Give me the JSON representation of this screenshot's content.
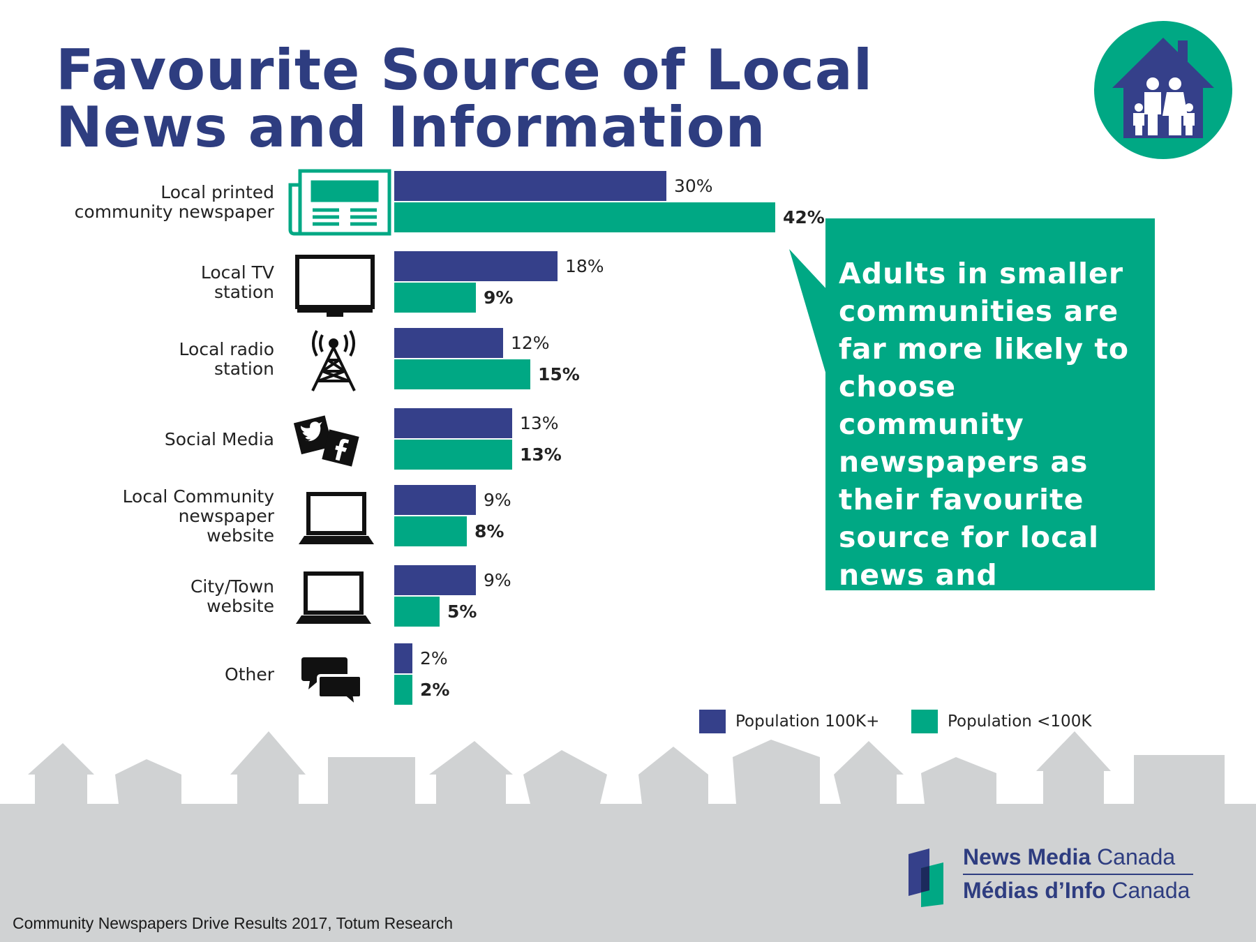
{
  "title": "Favourite Source of Local News and Information",
  "callout_text": "Adults in smaller communities  are far more likely to choose community newspapers as their favourite source for local news and information.",
  "legend": [
    {
      "label": "Population 100K+",
      "color": "#35408a"
    },
    {
      "label": "Population <100K",
      "color": "#00a884"
    }
  ],
  "source": "Community Newspapers Drive Results 2017, Totum Research",
  "logo": {
    "en_bold": "News Media",
    "en_rest": "Canada",
    "fr_bold": "Médias d’Info",
    "fr_rest": "Canada"
  },
  "colors": {
    "title": "#2e3d80",
    "series_large": "#35408a",
    "series_small": "#00a884",
    "skyline": "#d0d2d3"
  },
  "chart_data": {
    "type": "bar",
    "orientation": "horizontal",
    "categories": [
      {
        "label": [
          "Local printed",
          "community  newspaper"
        ],
        "icon": "newspaper-icon"
      },
      {
        "label": [
          "Local TV",
          "station"
        ],
        "icon": "tv-icon"
      },
      {
        "label": [
          "Local radio",
          "station"
        ],
        "icon": "radio-tower-icon"
      },
      {
        "label": [
          "Social Media"
        ],
        "icon": "social-media-icon"
      },
      {
        "label": [
          "Local Community",
          "newspaper",
          "website"
        ],
        "icon": "laptop-icon"
      },
      {
        "label": [
          "City/Town",
          "website"
        ],
        "icon": "laptop-icon"
      },
      {
        "label": [
          "Other"
        ],
        "icon": "chat-bubbles-icon"
      }
    ],
    "series": [
      {
        "name": "Population 100K+",
        "values": [
          30,
          18,
          12,
          13,
          9,
          9,
          2
        ],
        "labels": [
          "30%",
          "18%",
          "12%",
          "13%",
          "9%",
          "9%",
          "2%"
        ]
      },
      {
        "name": "Population <100K",
        "values": [
          42,
          9,
          15,
          13,
          8,
          5,
          2
        ],
        "labels": [
          "42%",
          "9%",
          "15%",
          "13%",
          "8%",
          "5%",
          "2%"
        ]
      }
    ],
    "unit": "%",
    "grid": false,
    "legend_position": "bottom-right"
  }
}
